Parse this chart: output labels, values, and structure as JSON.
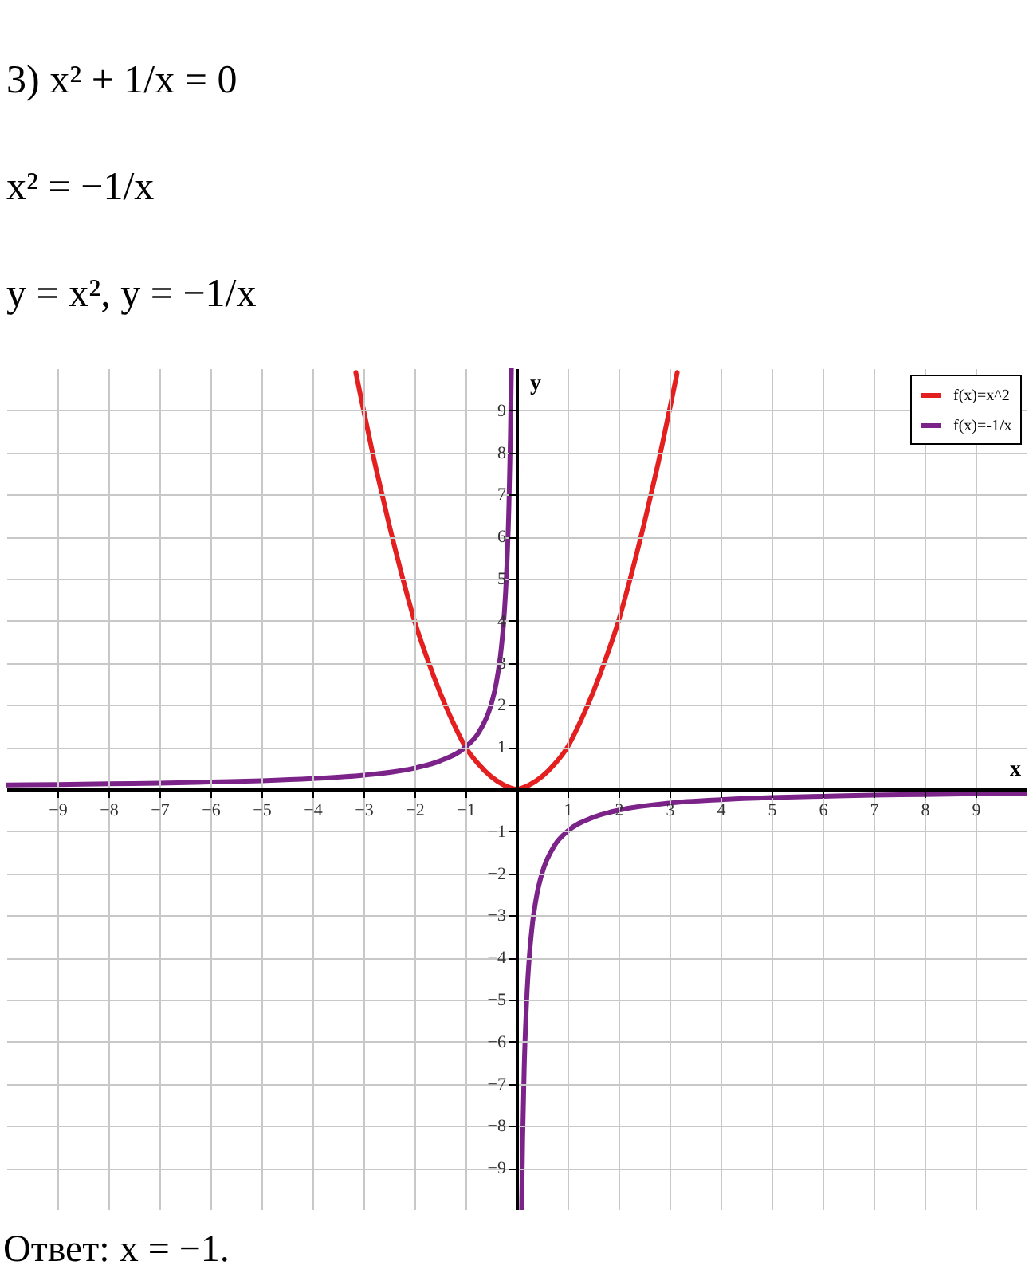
{
  "chart_data": {
    "type": "line",
    "title": "3) x² + 1/x = 0",
    "subtitle": "x² = −1/x",
    "annotations": [
      "y = x², y = −1/x",
      "Ответ: x = −1."
    ],
    "xlabel": "x",
    "ylabel": "y",
    "xlim": [
      -10,
      10
    ],
    "ylim": [
      -10,
      10
    ],
    "xticks": [
      -9,
      -8,
      -7,
      -6,
      -5,
      -4,
      -3,
      -2,
      -1,
      1,
      2,
      3,
      4,
      5,
      6,
      7,
      8,
      9
    ],
    "yticks": [
      -9,
      -8,
      -7,
      -6,
      -5,
      -4,
      -3,
      -2,
      -1,
      1,
      2,
      3,
      4,
      5,
      6,
      7,
      8,
      9
    ],
    "grid": true,
    "legend": "top right",
    "series": [
      {
        "name": "f(x)=x^2",
        "color": "#e41f1f",
        "x": [
          -3.15,
          -2.75,
          -2.5,
          -2.25,
          -2,
          -1.75,
          -1.5,
          -1.25,
          -1,
          -0.75,
          -0.5,
          -0.25,
          0,
          0.25,
          0.5,
          0.75,
          1,
          1.25,
          1.5,
          1.75,
          2,
          2.25,
          2.5,
          2.75,
          3.15
        ],
        "values": [
          9.9,
          7.6,
          6.3,
          5.1,
          4,
          3.1,
          2.3,
          1.6,
          1,
          0.6,
          0.3,
          0.1,
          0,
          0.1,
          0.3,
          0.6,
          1,
          1.6,
          2.3,
          3.1,
          4,
          5.1,
          6.3,
          7.6,
          9.9
        ]
      },
      {
        "name": "f(x)=-1/x",
        "color": "#7b2388",
        "x": [
          -10,
          -9,
          -8,
          -7,
          -6,
          -5,
          -4,
          -3,
          -2,
          -1.5,
          -1,
          -0.75,
          -0.5,
          -0.4,
          -0.3,
          -0.25,
          -0.2,
          -0.15,
          -0.12,
          -0.1,
          0,
          0.1,
          0.12,
          0.15,
          0.2,
          0.25,
          0.3,
          0.4,
          0.5,
          0.75,
          1,
          1.5,
          2,
          3,
          4,
          5,
          6,
          7,
          8,
          9,
          10
        ],
        "values": [
          0.1,
          0.11,
          0.13,
          0.14,
          0.17,
          0.2,
          0.25,
          0.33,
          0.5,
          0.67,
          1,
          1.33,
          2,
          2.5,
          3.33,
          4,
          5,
          6.67,
          8.33,
          10,
          null,
          -10,
          -8.33,
          -6.67,
          -5,
          -4,
          -3.33,
          -2.5,
          -2,
          -1.33,
          -1,
          -0.67,
          -0.5,
          -0.33,
          -0.25,
          -0.2,
          -0.17,
          -0.14,
          -0.13,
          -0.11,
          -0.1
        ]
      }
    ]
  }
}
